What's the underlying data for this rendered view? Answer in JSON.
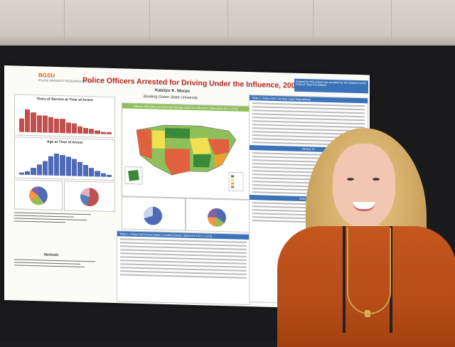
{
  "poster": {
    "logo": "BGSU",
    "logo_sub": "POLICE INTEGRITY RESEARCH GROUP",
    "title": "Police Officers Arrested for Driving Under the Influence, 2005-2014",
    "author": "Katelyn K. Moran",
    "university": "Bowling Green State University",
    "support_note": "Support for this project was provided by the Stalwart Action Fund of Tides Foundation.",
    "chart_years_title": "Years of Service at Time of Arrest",
    "chart_age_title": "Age at Time of Arrest",
    "map_header": "Officers Who Were Arrested for Driving Under the Influence, 2005-2014 (N = 1,172)",
    "table_title": "Table 1. Police DUI Arrest Cases: Incident Events, 2005-2014 (N = 1,172)",
    "results_header": "RESULTS",
    "methods_header": "Methods",
    "discussion_header": "DISCUSSION",
    "table2_header": "Table 2. Police DUI Criminal Case Dispositions"
  },
  "colors": {
    "poster_title": "#b3231f",
    "bar_red": "#c0504d",
    "bar_blue": "#4f6bb8",
    "sweater": "#c4561e"
  }
}
